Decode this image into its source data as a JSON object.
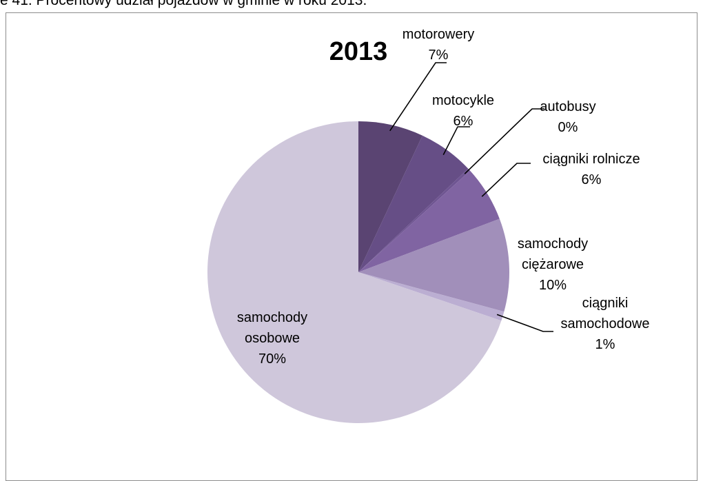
{
  "caption": "e 41. Procentowy udział pojazdów w gminie w roku 2013.",
  "chart_data": {
    "type": "pie",
    "title": "2013",
    "start_angle_deg": 0,
    "direction": "clockwise",
    "slices": [
      {
        "name": "motorowery",
        "value": 7,
        "label": "7%",
        "color": "#5a4472"
      },
      {
        "name": "motocykle",
        "value": 6,
        "label": "6%",
        "color": "#664e86"
      },
      {
        "name": "autobusy",
        "value": 0.3,
        "label": "0%",
        "color": "#6f5592"
      },
      {
        "name": "ciągniki rolnicze",
        "value": 6,
        "label": "6%",
        "color": "#8064a2"
      },
      {
        "name": "samochody ciężarowe",
        "value": 10,
        "label": "10%",
        "color": "#a18fba"
      },
      {
        "name": "ciągniki samochodowe",
        "value": 1,
        "label": "1%",
        "color": "#bbaed2"
      },
      {
        "name": "samochody osobowe",
        "value": 70,
        "label": "70%",
        "color": "#cfc7db"
      }
    ],
    "slice_label_lines": [
      [
        "motorowery",
        "7%"
      ],
      [
        "motocykle",
        "6%"
      ],
      [
        "autobusy",
        "0%"
      ],
      [
        "ciągniki rolnicze",
        "6%"
      ],
      [
        "samochody",
        "ciężarowe",
        "10%"
      ],
      [
        "ciągniki",
        "samochodowe",
        "1%"
      ],
      [
        "samochody",
        "osobowe",
        "70%"
      ]
    ]
  }
}
